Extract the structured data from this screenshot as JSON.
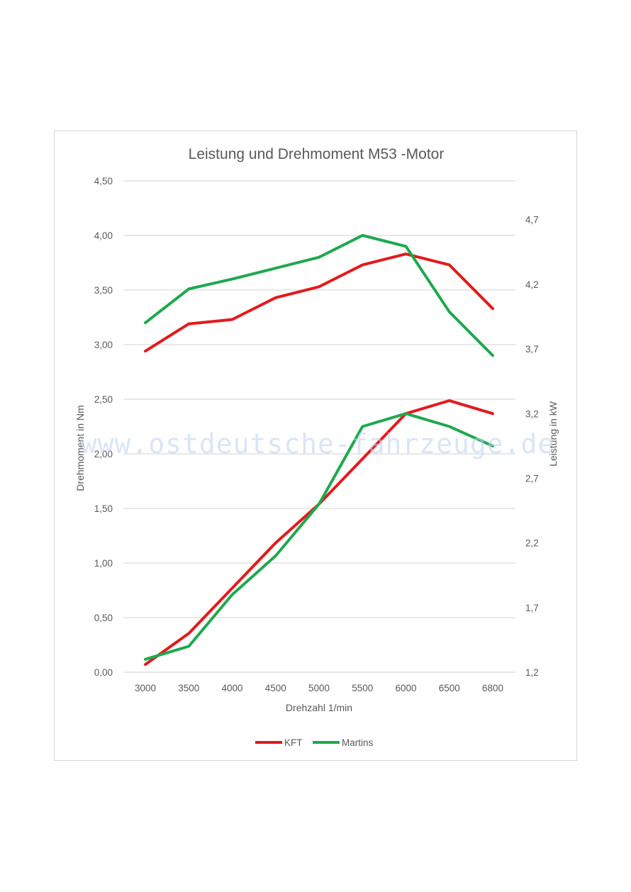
{
  "watermark": "www.ostdeutsche-fahrzeuge.de",
  "chart_data": {
    "type": "line",
    "title": "Leistung und Drehmoment M53 -Motor",
    "xlabel": "Drehzahl 1/min",
    "ylabel": "Drehmoment in Nm",
    "y2label": "Leistung in kW",
    "categories": [
      "3000",
      "3500",
      "4000",
      "4500",
      "5000",
      "5500",
      "6000",
      "6500",
      "6800"
    ],
    "ylim": [
      0,
      4.5
    ],
    "yticks": [
      "0,00",
      "0,50",
      "1,00",
      "1,50",
      "2,00",
      "2,50",
      "3,00",
      "3,50",
      "4,00",
      "4,50"
    ],
    "y2lim": [
      1.2,
      5.0
    ],
    "y2ticks": [
      "1,2",
      "1,7",
      "2,2",
      "2,7",
      "3,2",
      "3,7",
      "4,2",
      "4,7"
    ],
    "grid": true,
    "legend_position": "bottom",
    "series": [
      {
        "name": "KFT",
        "axis": "left",
        "color": "#e31a1c",
        "values": [
          2.94,
          3.19,
          3.23,
          3.43,
          3.53,
          3.73,
          3.83,
          3.73,
          3.33
        ]
      },
      {
        "name": "Martins",
        "axis": "left",
        "color": "#1fa84f",
        "values": [
          3.2,
          3.51,
          3.6,
          3.7,
          3.8,
          4.0,
          3.9,
          3.3,
          2.9
        ]
      },
      {
        "name": "KFT",
        "axis": "right",
        "color": "#e31a1c",
        "values": [
          1.26,
          1.5,
          1.85,
          2.2,
          2.5,
          2.85,
          3.2,
          3.3,
          3.2
        ]
      },
      {
        "name": "Martins",
        "axis": "right",
        "color": "#1fa84f",
        "values": [
          1.3,
          1.4,
          1.8,
          2.1,
          2.5,
          3.1,
          3.2,
          3.1,
          2.95
        ]
      }
    ],
    "legend": [
      {
        "name": "KFT",
        "color": "#e31a1c"
      },
      {
        "name": "Martins",
        "color": "#1fa84f"
      }
    ]
  }
}
